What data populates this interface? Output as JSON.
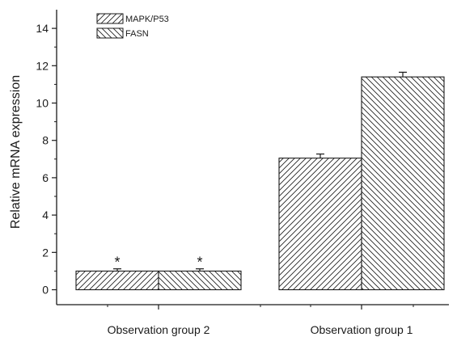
{
  "chart_data": {
    "type": "bar",
    "ylabel": "Relative mRNA expression",
    "xlabel": "",
    "ylim": [
      -0.8,
      15
    ],
    "yticks": [
      0,
      2,
      4,
      6,
      8,
      10,
      12,
      14
    ],
    "categories": [
      "Observation group 2",
      "Observation group 1"
    ],
    "series": [
      {
        "name": "MAPK/P53",
        "values": [
          1.0,
          7.05
        ],
        "errors": [
          0.12,
          0.22
        ],
        "hatch": "forward-diagonal"
      },
      {
        "name": "FASN",
        "values": [
          1.0,
          11.4
        ],
        "errors": [
          0.12,
          0.25
        ],
        "hatch": "backward-diagonal"
      }
    ],
    "annotations": [
      {
        "category": "Observation group 2",
        "series": "MAPK/P53",
        "text": "*"
      },
      {
        "category": "Observation group 2",
        "series": "FASN",
        "text": "*"
      }
    ],
    "legend_position": "top-left",
    "grid": false
  },
  "colors": {
    "bar_fill": "#ffffff",
    "bar_stroke": "#1a1a1a",
    "axis": "#1a1a1a"
  }
}
